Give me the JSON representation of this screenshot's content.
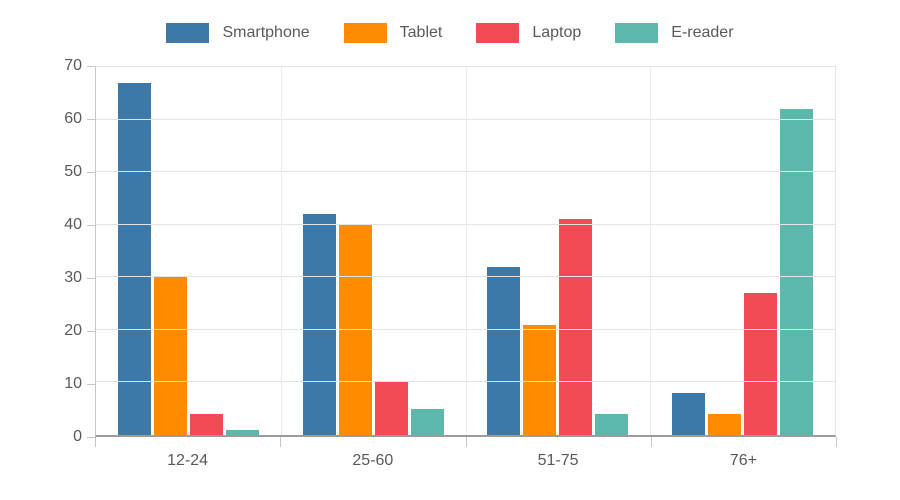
{
  "chart_data": {
    "type": "bar",
    "title": "",
    "xlabel": "",
    "ylabel": "",
    "categories": [
      "12-24",
      "25-60",
      "51-75",
      "76+"
    ],
    "series": [
      {
        "name": "Smartphone",
        "color": "#3c78a8",
        "values": [
          67,
          42,
          32,
          8
        ]
      },
      {
        "name": "Tablet",
        "color": "#ff8c00",
        "values": [
          30,
          40,
          21,
          4
        ]
      },
      {
        "name": "Laptop",
        "color": "#f04b55",
        "values": [
          4,
          10,
          41,
          27
        ]
      },
      {
        "name": "E-reader",
        "color": "#5cb8ab",
        "values": [
          1,
          5,
          4,
          62
        ]
      }
    ],
    "ylim": [
      0,
      70
    ],
    "yticks": [
      0,
      10,
      20,
      30,
      40,
      50,
      60,
      70
    ],
    "grid": true,
    "legend_position": "top"
  }
}
